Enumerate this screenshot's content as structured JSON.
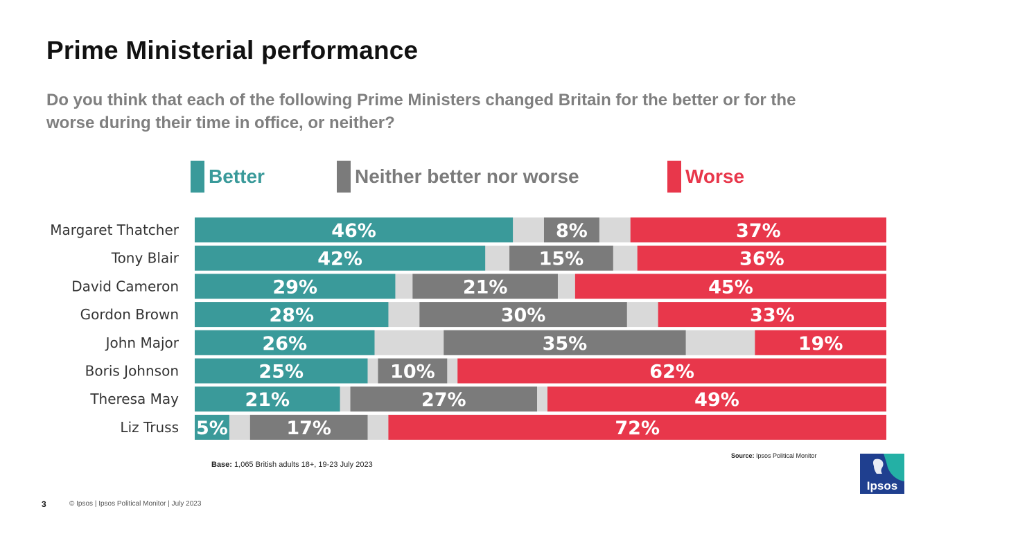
{
  "header": {
    "title": "Prime Ministerial performance",
    "question": "Do you think that each of the following Prime Ministers changed Britain for the better or for the worse during their time in office, or neither?"
  },
  "legend": [
    {
      "label": "Better",
      "color": "#3a9a9a"
    },
    {
      "label": "Neither better nor worse",
      "color": "#7b7b7b"
    },
    {
      "label": "Worse",
      "color": "#e8374b"
    }
  ],
  "chart_data": {
    "type": "bar",
    "orientation": "horizontal",
    "stacked": true,
    "categories": [
      "Margaret Thatcher",
      "Tony Blair",
      "David Cameron",
      "Gordon Brown",
      "John Major",
      "Boris Johnson",
      "Theresa May",
      "Liz Truss"
    ],
    "series": [
      {
        "name": "Better",
        "color": "#3a9a9a",
        "values": [
          46,
          42,
          29,
          28,
          26,
          25,
          21,
          5
        ]
      },
      {
        "name": "Neither better nor worse",
        "color": "#7b7b7b",
        "values": [
          8,
          15,
          21,
          30,
          35,
          10,
          27,
          17
        ]
      },
      {
        "name": "Worse",
        "color": "#e8374b",
        "values": [
          37,
          36,
          45,
          33,
          19,
          62,
          49,
          72
        ]
      }
    ],
    "data_labels": [
      [
        "46%",
        "8%",
        "37%"
      ],
      [
        "42%",
        "15%",
        "36%"
      ],
      [
        "29%",
        "21%",
        "45%"
      ],
      [
        "28%",
        "30%",
        "33%"
      ],
      [
        "26%",
        "35%",
        "19%"
      ],
      [
        "25%",
        "10%",
        "62%"
      ],
      [
        "21%",
        "27%",
        "49%"
      ],
      [
        "5%",
        "17%",
        "72%"
      ]
    ],
    "unit": "%",
    "gap_color": "#d9d9d9"
  },
  "notes": {
    "base_label": "Base:",
    "base_text": " 1,065 British adults 18+, 19-23 July 2023",
    "source_label": "Source:",
    "source_text": " Ipsos  Political Monitor",
    "page_number": "3",
    "footer": "© Ipsos | Ipsos Political Monitor | July 2023"
  },
  "logo": {
    "text": "Ipsos",
    "color": "#1f3f8f",
    "accent": "#24b0a5"
  }
}
